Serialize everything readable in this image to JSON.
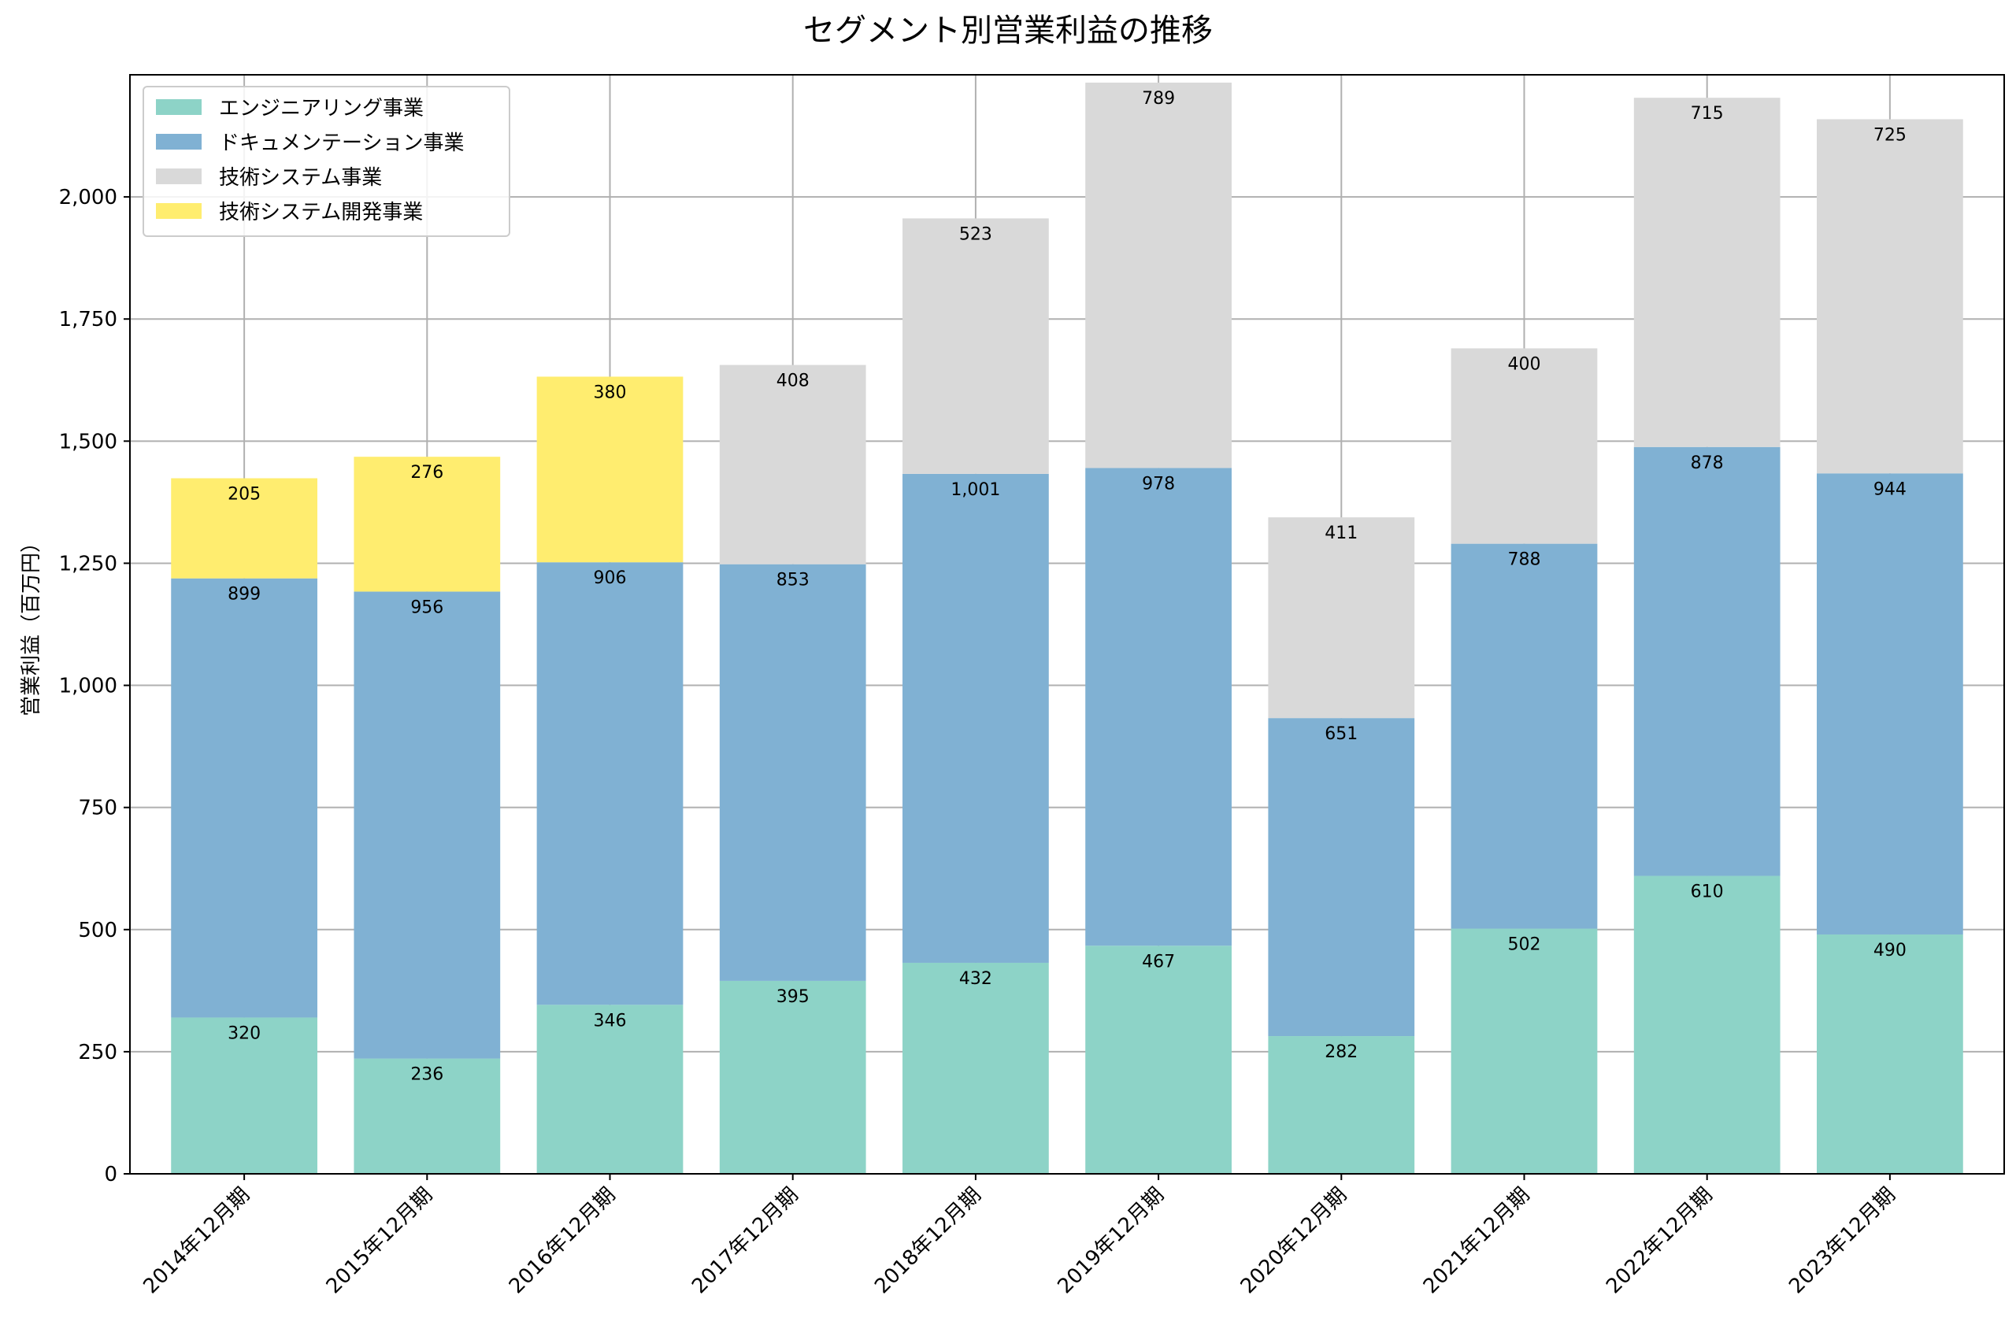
{
  "chart_data": {
    "type": "bar",
    "stacked": true,
    "title": "セグメント別営業利益の推移",
    "xlabel": "",
    "ylabel": "営業利益（百万円）",
    "ylim": [
      0,
      2250
    ],
    "yticks": [
      0,
      250,
      500,
      750,
      1000,
      1250,
      1500,
      1750,
      2000
    ],
    "ytick_labels": [
      "0",
      "250",
      "500",
      "750",
      "1,000",
      "1,250",
      "1,500",
      "1,750",
      "2,000"
    ],
    "grid": true,
    "legend_position": "top-left",
    "categories": [
      "2014年12月期",
      "2015年12月期",
      "2016年12月期",
      "2017年12月期",
      "2018年12月期",
      "2019年12月期",
      "2020年12月期",
      "2021年12月期",
      "2022年12月期",
      "2023年12月期"
    ],
    "series": [
      {
        "name": "エンジニアリング事業",
        "color": "#8dd3c7",
        "values": [
          320,
          236,
          346,
          395,
          432,
          467,
          282,
          502,
          610,
          490
        ]
      },
      {
        "name": "ドキュメンテーション事業",
        "color": "#80b1d3",
        "values": [
          899,
          956,
          906,
          853,
          1001,
          978,
          651,
          788,
          878,
          944
        ]
      },
      {
        "name": "技術システム事業",
        "color": "#d9d9d9",
        "values": [
          0,
          0,
          0,
          408,
          523,
          789,
          411,
          400,
          715,
          725
        ]
      },
      {
        "name": "技術システム開発事業",
        "color": "#ffed6f",
        "values": [
          205,
          276,
          380,
          0,
          0,
          0,
          0,
          0,
          0,
          0
        ]
      }
    ]
  }
}
